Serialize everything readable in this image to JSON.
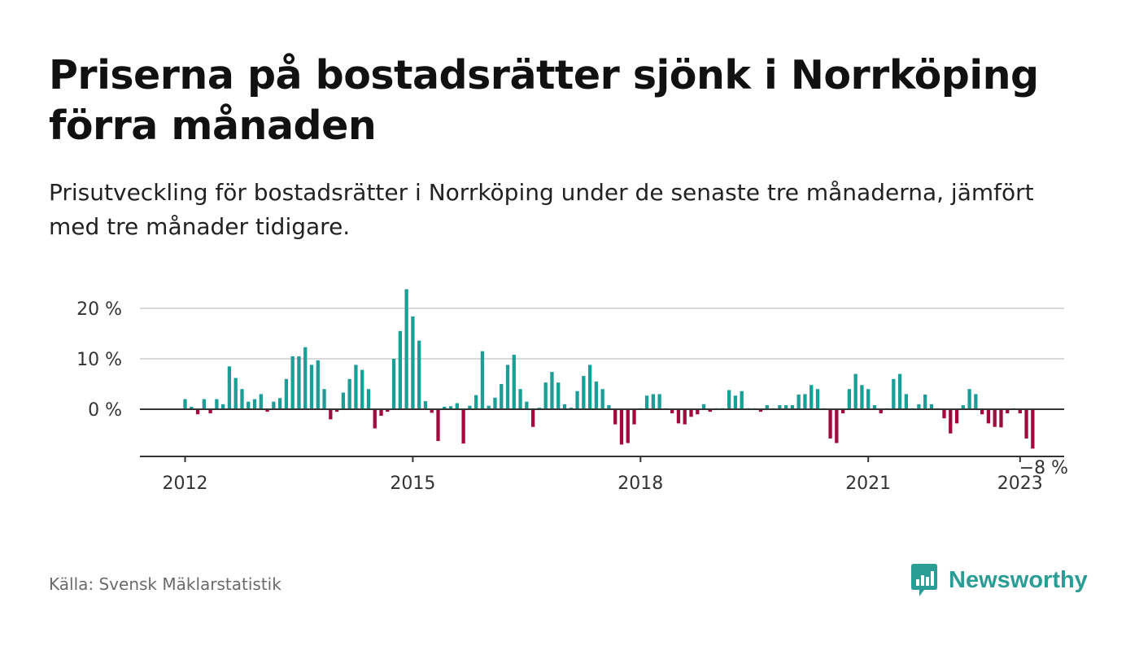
{
  "header": {
    "title": "Priserna på bostadsrätter sjönk i Norrköping förra månaden",
    "subtitle": "Prisutveckling för bostadsrätter i Norrköping under de senaste tre månaderna, jämfört med tre månader tidigare."
  },
  "footer": {
    "source": "Källa: Svensk Mäklarstatistik",
    "brand": "Newsworthy",
    "brand_icon": "bar-chart-speech-bubble-icon"
  },
  "colors": {
    "positive": "#1a9e96",
    "negative": "#a3093f",
    "grid": "#d9d9d9",
    "axis": "#333333",
    "text": "#333333",
    "brand": "#2a9d95"
  },
  "chart_data": {
    "type": "bar",
    "title": "",
    "xlabel": "",
    "ylabel": "",
    "ylim": [
      -9,
      24
    ],
    "y_ticks": [
      0,
      10,
      20
    ],
    "y_tick_labels": [
      "0 %",
      "10 %",
      "20 %"
    ],
    "x_ticks": [
      2012,
      2015,
      2018,
      2021,
      2023
    ],
    "x_tick_labels": [
      "2012",
      "2015",
      "2018",
      "2021",
      "2023"
    ],
    "grid": true,
    "legend": "none",
    "x_start": "2012-01",
    "annotation": {
      "x": "2023-05",
      "text": "−8 %"
    },
    "values": [
      2,
      0.5,
      -1,
      2,
      -0.8,
      2,
      1,
      8.5,
      6.2,
      4,
      1.5,
      2,
      3,
      -0.5,
      1.5,
      2.2,
      6,
      10.5,
      10.5,
      12.3,
      8.8,
      9.7,
      4,
      -2,
      -0.5,
      3.3,
      6,
      8.8,
      7.8,
      4,
      -3.8,
      -1.3,
      -0.5,
      10,
      15.5,
      23.8,
      18.4,
      13.6,
      1.6,
      -0.7,
      -6.3,
      0.5,
      0.6,
      1.2,
      -6.8,
      0.7,
      2.8,
      11.5,
      0.7,
      2.3,
      5,
      8.8,
      10.8,
      4,
      1.5,
      -3.5,
      0.3,
      5.3,
      7.4,
      5.3,
      1,
      0.3,
      3.6,
      6.6,
      8.8,
      5.5,
      4,
      0.8,
      -3,
      -7,
      -6.7,
      -3,
      0.2,
      2.7,
      3,
      3,
      0.2,
      -0.8,
      -2.8,
      -3,
      -1.5,
      -1,
      1,
      -0.5,
      0.2,
      0.2,
      3.8,
      2.7,
      3.6,
      0.2,
      0.2,
      -0.5,
      0.8,
      0.2,
      0.8,
      0.8,
      0.8,
      2.9,
      3,
      4.8,
      4,
      0.2,
      -5.8,
      -6.7,
      -0.8,
      4,
      7,
      4.8,
      4,
      0.8,
      -0.8,
      0.2,
      6,
      7,
      3,
      0.2,
      1,
      2.9,
      1,
      0.2,
      -1.8,
      -4.8,
      -2.8,
      0.8,
      4,
      3,
      -1,
      -2.8,
      -3.5,
      -3.6,
      -0.8,
      0.2,
      -0.8,
      -5.8,
      -7.8
    ]
  }
}
